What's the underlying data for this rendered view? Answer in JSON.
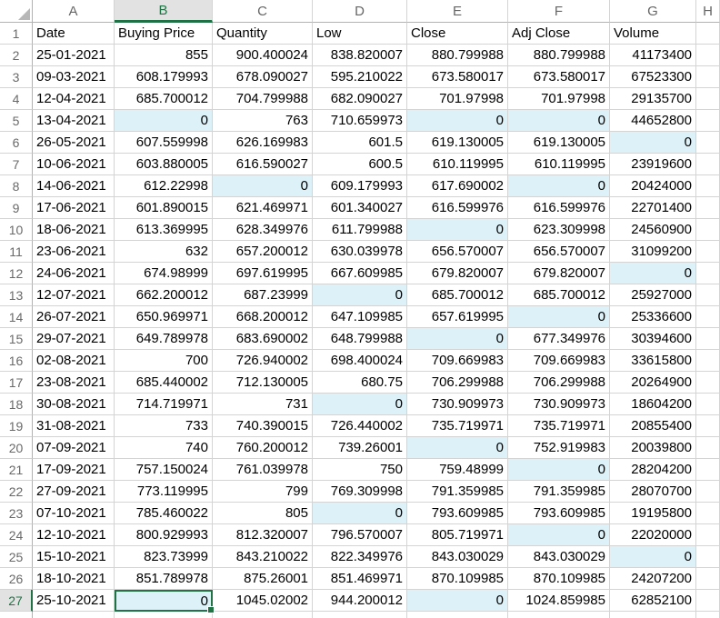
{
  "sheet": {
    "columns": [
      "A",
      "B",
      "C",
      "D",
      "E",
      "F",
      "G",
      "H"
    ],
    "selected_column": "B",
    "selected_row": 27,
    "active_cell": "B27",
    "colors": {
      "accent_green": "#217346",
      "zero_highlight_fill": "#ddf1f8",
      "selected_header_bg": "#e2e2e2",
      "gridline": "#d4d4d4"
    },
    "rows": [
      {
        "n": 1,
        "header": true,
        "cells": [
          {
            "v": "Date"
          },
          {
            "v": "Buying Price"
          },
          {
            "v": "Quantity"
          },
          {
            "v": "Low"
          },
          {
            "v": "Close"
          },
          {
            "v": "Adj Close"
          },
          {
            "v": "Volume"
          }
        ]
      },
      {
        "n": 2,
        "cells": [
          {
            "v": "25-01-2021"
          },
          {
            "v": "855"
          },
          {
            "v": "900.400024"
          },
          {
            "v": "838.820007"
          },
          {
            "v": "880.799988"
          },
          {
            "v": "880.799988"
          },
          {
            "v": "41173400"
          }
        ]
      },
      {
        "n": 3,
        "cells": [
          {
            "v": "09-03-2021"
          },
          {
            "v": "608.179993"
          },
          {
            "v": "678.090027"
          },
          {
            "v": "595.210022"
          },
          {
            "v": "673.580017"
          },
          {
            "v": "673.580017"
          },
          {
            "v": "67523300"
          }
        ]
      },
      {
        "n": 4,
        "cells": [
          {
            "v": "12-04-2021"
          },
          {
            "v": "685.700012"
          },
          {
            "v": "704.799988"
          },
          {
            "v": "682.090027"
          },
          {
            "v": "701.97998"
          },
          {
            "v": "701.97998"
          },
          {
            "v": "29135700"
          }
        ]
      },
      {
        "n": 5,
        "cells": [
          {
            "v": "13-04-2021"
          },
          {
            "v": "0",
            "h": true
          },
          {
            "v": "763"
          },
          {
            "v": "710.659973"
          },
          {
            "v": "0",
            "h": true
          },
          {
            "v": "0",
            "h": true
          },
          {
            "v": "44652800"
          }
        ]
      },
      {
        "n": 6,
        "cells": [
          {
            "v": "26-05-2021"
          },
          {
            "v": "607.559998"
          },
          {
            "v": "626.169983"
          },
          {
            "v": "601.5"
          },
          {
            "v": "619.130005"
          },
          {
            "v": "619.130005"
          },
          {
            "v": "0",
            "h": true
          }
        ]
      },
      {
        "n": 7,
        "cells": [
          {
            "v": "10-06-2021"
          },
          {
            "v": "603.880005"
          },
          {
            "v": "616.590027"
          },
          {
            "v": "600.5"
          },
          {
            "v": "610.119995"
          },
          {
            "v": "610.119995"
          },
          {
            "v": "23919600"
          }
        ]
      },
      {
        "n": 8,
        "cells": [
          {
            "v": "14-06-2021"
          },
          {
            "v": "612.22998"
          },
          {
            "v": "0",
            "h": true
          },
          {
            "v": "609.179993"
          },
          {
            "v": "617.690002"
          },
          {
            "v": "0",
            "h": true
          },
          {
            "v": "20424000"
          }
        ]
      },
      {
        "n": 9,
        "cells": [
          {
            "v": "17-06-2021"
          },
          {
            "v": "601.890015"
          },
          {
            "v": "621.469971"
          },
          {
            "v": "601.340027"
          },
          {
            "v": "616.599976"
          },
          {
            "v": "616.599976"
          },
          {
            "v": "22701400"
          }
        ]
      },
      {
        "n": 10,
        "cells": [
          {
            "v": "18-06-2021"
          },
          {
            "v": "613.369995"
          },
          {
            "v": "628.349976"
          },
          {
            "v": "611.799988"
          },
          {
            "v": "0",
            "h": true
          },
          {
            "v": "623.309998"
          },
          {
            "v": "24560900"
          }
        ]
      },
      {
        "n": 11,
        "cells": [
          {
            "v": "23-06-2021"
          },
          {
            "v": "632"
          },
          {
            "v": "657.200012"
          },
          {
            "v": "630.039978"
          },
          {
            "v": "656.570007"
          },
          {
            "v": "656.570007"
          },
          {
            "v": "31099200"
          }
        ]
      },
      {
        "n": 12,
        "cells": [
          {
            "v": "24-06-2021"
          },
          {
            "v": "674.98999"
          },
          {
            "v": "697.619995"
          },
          {
            "v": "667.609985"
          },
          {
            "v": "679.820007"
          },
          {
            "v": "679.820007"
          },
          {
            "v": "0",
            "h": true
          }
        ]
      },
      {
        "n": 13,
        "cells": [
          {
            "v": "12-07-2021"
          },
          {
            "v": "662.200012"
          },
          {
            "v": "687.23999"
          },
          {
            "v": "0",
            "h": true
          },
          {
            "v": "685.700012"
          },
          {
            "v": "685.700012"
          },
          {
            "v": "25927000"
          }
        ]
      },
      {
        "n": 14,
        "cells": [
          {
            "v": "26-07-2021"
          },
          {
            "v": "650.969971"
          },
          {
            "v": "668.200012"
          },
          {
            "v": "647.109985"
          },
          {
            "v": "657.619995"
          },
          {
            "v": "0",
            "h": true
          },
          {
            "v": "25336600"
          }
        ]
      },
      {
        "n": 15,
        "cells": [
          {
            "v": "29-07-2021"
          },
          {
            "v": "649.789978"
          },
          {
            "v": "683.690002"
          },
          {
            "v": "648.799988"
          },
          {
            "v": "0",
            "h": true
          },
          {
            "v": "677.349976"
          },
          {
            "v": "30394600"
          }
        ]
      },
      {
        "n": 16,
        "cells": [
          {
            "v": "02-08-2021"
          },
          {
            "v": "700"
          },
          {
            "v": "726.940002"
          },
          {
            "v": "698.400024"
          },
          {
            "v": "709.669983"
          },
          {
            "v": "709.669983"
          },
          {
            "v": "33615800"
          }
        ]
      },
      {
        "n": 17,
        "cells": [
          {
            "v": "23-08-2021"
          },
          {
            "v": "685.440002"
          },
          {
            "v": "712.130005"
          },
          {
            "v": "680.75"
          },
          {
            "v": "706.299988"
          },
          {
            "v": "706.299988"
          },
          {
            "v": "20264900"
          }
        ]
      },
      {
        "n": 18,
        "cells": [
          {
            "v": "30-08-2021"
          },
          {
            "v": "714.719971"
          },
          {
            "v": "731"
          },
          {
            "v": "0",
            "h": true
          },
          {
            "v": "730.909973"
          },
          {
            "v": "730.909973"
          },
          {
            "v": "18604200"
          }
        ]
      },
      {
        "n": 19,
        "cells": [
          {
            "v": "31-08-2021"
          },
          {
            "v": "733"
          },
          {
            "v": "740.390015"
          },
          {
            "v": "726.440002"
          },
          {
            "v": "735.719971"
          },
          {
            "v": "735.719971"
          },
          {
            "v": "20855400"
          }
        ]
      },
      {
        "n": 20,
        "cells": [
          {
            "v": "07-09-2021"
          },
          {
            "v": "740"
          },
          {
            "v": "760.200012"
          },
          {
            "v": "739.26001"
          },
          {
            "v": "0",
            "h": true
          },
          {
            "v": "752.919983"
          },
          {
            "v": "20039800"
          }
        ]
      },
      {
        "n": 21,
        "cells": [
          {
            "v": "17-09-2021"
          },
          {
            "v": "757.150024"
          },
          {
            "v": "761.039978"
          },
          {
            "v": "750"
          },
          {
            "v": "759.48999"
          },
          {
            "v": "0",
            "h": true
          },
          {
            "v": "28204200"
          }
        ]
      },
      {
        "n": 22,
        "cells": [
          {
            "v": "27-09-2021"
          },
          {
            "v": "773.119995"
          },
          {
            "v": "799"
          },
          {
            "v": "769.309998"
          },
          {
            "v": "791.359985"
          },
          {
            "v": "791.359985"
          },
          {
            "v": "28070700"
          }
        ]
      },
      {
        "n": 23,
        "cells": [
          {
            "v": "07-10-2021"
          },
          {
            "v": "785.460022"
          },
          {
            "v": "805"
          },
          {
            "v": "0",
            "h": true
          },
          {
            "v": "793.609985"
          },
          {
            "v": "793.609985"
          },
          {
            "v": "19195800"
          }
        ]
      },
      {
        "n": 24,
        "cells": [
          {
            "v": "12-10-2021"
          },
          {
            "v": "800.929993"
          },
          {
            "v": "812.320007"
          },
          {
            "v": "796.570007"
          },
          {
            "v": "805.719971"
          },
          {
            "v": "0",
            "h": true
          },
          {
            "v": "22020000"
          }
        ]
      },
      {
        "n": 25,
        "cells": [
          {
            "v": "15-10-2021"
          },
          {
            "v": "823.73999"
          },
          {
            "v": "843.210022"
          },
          {
            "v": "822.349976"
          },
          {
            "v": "843.030029"
          },
          {
            "v": "843.030029"
          },
          {
            "v": "0",
            "h": true
          }
        ]
      },
      {
        "n": 26,
        "cells": [
          {
            "v": "18-10-2021"
          },
          {
            "v": "851.789978"
          },
          {
            "v": "875.26001"
          },
          {
            "v": "851.469971"
          },
          {
            "v": "870.109985"
          },
          {
            "v": "870.109985"
          },
          {
            "v": "24207200"
          }
        ]
      },
      {
        "n": 27,
        "cells": [
          {
            "v": "25-10-2021"
          },
          {
            "v": "0",
            "h": true,
            "a": true
          },
          {
            "v": "1045.02002"
          },
          {
            "v": "944.200012"
          },
          {
            "v": "0",
            "h": true
          },
          {
            "v": "1024.859985"
          },
          {
            "v": "62852100"
          }
        ]
      }
    ]
  }
}
